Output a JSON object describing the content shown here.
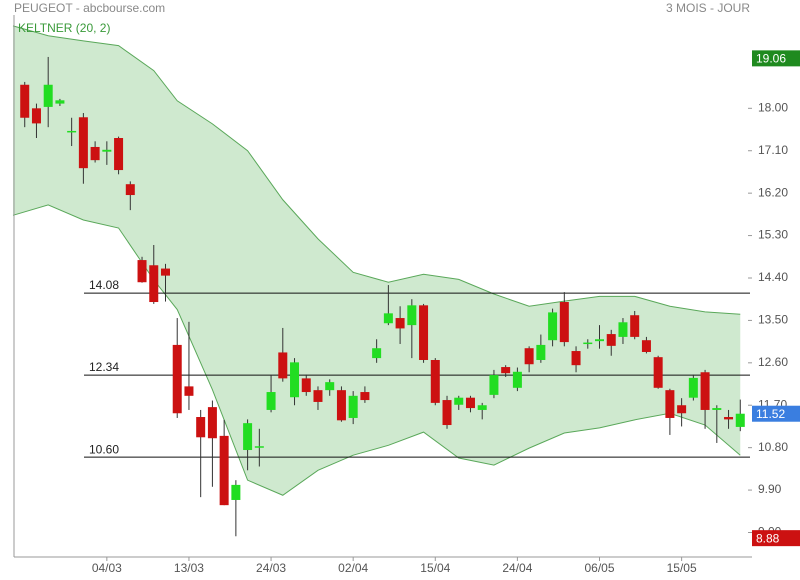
{
  "chart_data": {
    "type": "candlestick",
    "title": "PEUGEOT - abcbourse.com",
    "subtitle": "3 MOIS - JOUR",
    "indicator_label": "KELTNER (20, 2)",
    "categories": [
      null,
      null,
      null,
      null,
      null,
      null,
      null,
      "04/03",
      null,
      null,
      null,
      null,
      null,
      null,
      "13/03",
      null,
      null,
      null,
      null,
      null,
      null,
      "24/03",
      null,
      null,
      null,
      null,
      null,
      null,
      "02/04",
      null,
      null,
      null,
      null,
      null,
      null,
      "15/04",
      null,
      null,
      null,
      null,
      null,
      null,
      "24/04",
      null,
      null,
      null,
      null,
      null,
      null,
      "06/05",
      null,
      null,
      null,
      null,
      null,
      null,
      "15/05",
      null,
      null,
      null,
      null,
      null
    ],
    "open": [
      18.5,
      18.0,
      18.03,
      18.1,
      17.5,
      17.81,
      17.18,
      17.08,
      17.37,
      16.39,
      14.78,
      14.67,
      14.6,
      12.98,
      12.1,
      11.45,
      11.66,
      11.05,
      9.69,
      10.75,
      10.8,
      11.6,
      12.82,
      11.87,
      12.27,
      12.02,
      12.02,
      12.02,
      11.43,
      11.98,
      12.7,
      13.44,
      13.55,
      13.4,
      13.82,
      12.66,
      11.81,
      11.71,
      11.86,
      11.6,
      11.92,
      12.51,
      12.07,
      12.91,
      12.66,
      13.08,
      13.89,
      12.85,
      13.0,
      13.06,
      13.21,
      13.15,
      13.61,
      13.08,
      12.72,
      12.02,
      11.7,
      11.86,
      12.4,
      11.6,
      11.45,
      11.24
    ],
    "high": [
      18.56,
      18.1,
      19.09,
      18.2,
      17.8,
      17.9,
      17.3,
      17.3,
      17.4,
      16.45,
      14.85,
      15.1,
      14.7,
      13.55,
      13.47,
      11.6,
      11.8,
      11.39,
      10.11,
      11.4,
      11.2,
      12.34,
      13.34,
      12.7,
      12.35,
      12.1,
      12.25,
      12.1,
      12.0,
      12.1,
      13.1,
      14.25,
      13.8,
      13.95,
      13.85,
      12.7,
      11.9,
      11.9,
      11.9,
      11.75,
      12.45,
      12.55,
      12.5,
      12.95,
      13.2,
      13.75,
      14.1,
      12.95,
      13.1,
      13.4,
      13.3,
      13.55,
      13.7,
      13.15,
      12.75,
      12.05,
      11.85,
      12.35,
      12.45,
      11.7,
      11.6,
      11.82
    ],
    "low": [
      17.6,
      17.37,
      17.6,
      18.05,
      17.2,
      16.4,
      16.85,
      16.8,
      16.6,
      15.84,
      14.3,
      13.85,
      13.9,
      11.43,
      11.6,
      9.75,
      9.97,
      9.58,
      8.92,
      10.32,
      10.4,
      11.55,
      12.2,
      11.7,
      11.9,
      11.6,
      11.9,
      11.35,
      11.3,
      11.75,
      12.6,
      13.4,
      13.0,
      12.7,
      12.6,
      11.7,
      11.2,
      11.6,
      11.55,
      11.4,
      11.85,
      12.3,
      12.0,
      12.4,
      12.6,
      12.95,
      12.95,
      12.4,
      12.9,
      12.9,
      12.75,
      13.0,
      13.1,
      12.8,
      12.05,
      11.07,
      11.25,
      11.8,
      11.2,
      10.9,
      11.2,
      11.15
    ],
    "close": [
      17.8,
      17.68,
      18.5,
      18.17,
      17.52,
      16.73,
      16.9,
      17.12,
      16.69,
      16.16,
      14.31,
      13.89,
      14.45,
      11.53,
      11.9,
      11.02,
      11.0,
      9.58,
      10.01,
      11.32,
      10.83,
      11.98,
      12.27,
      12.61,
      11.98,
      11.77,
      12.19,
      11.38,
      11.9,
      11.81,
      12.91,
      13.65,
      13.33,
      13.82,
      12.66,
      11.75,
      11.28,
      11.86,
      11.64,
      11.7,
      12.34,
      12.38,
      12.41,
      12.57,
      12.98,
      13.67,
      13.04,
      12.55,
      13.03,
      13.1,
      12.96,
      13.46,
      13.15,
      12.83,
      12.07,
      11.43,
      11.53,
      12.28,
      11.6,
      11.64,
      11.4,
      11.52
    ],
    "up_color": "#22dd22",
    "down_color": "#cc1111",
    "keltner": {
      "x": [
        -1,
        2,
        5,
        8,
        11,
        13,
        16,
        19,
        22,
        25,
        28,
        31,
        34,
        37,
        40,
        43,
        46,
        49,
        52,
        55,
        58,
        61
      ],
      "upper": [
        19.75,
        19.54,
        19.43,
        19.33,
        18.8,
        18.16,
        17.67,
        17.1,
        16.06,
        15.23,
        14.52,
        14.31,
        14.48,
        14.37,
        14.06,
        13.8,
        13.91,
        14.01,
        14.01,
        13.8,
        13.68,
        13.63
      ],
      "lower": [
        15.73,
        15.95,
        15.63,
        15.46,
        14.36,
        13.73,
        12.03,
        10.11,
        9.79,
        10.32,
        10.64,
        10.85,
        11.13,
        10.58,
        10.43,
        10.79,
        11.11,
        11.22,
        11.39,
        11.53,
        11.28,
        10.64
      ],
      "color": "#5aa85a",
      "fill": "#cfe9cf"
    },
    "levels": [
      14.08,
      12.34,
      {
        "value": 10.6,
        "label": "10.60"
      }
    ],
    "markers": [
      {
        "value": 19.06,
        "color": "#1f8a1f"
      },
      {
        "value": 11.52,
        "color": "#3a7ee0"
      },
      {
        "value": 8.88,
        "color": "#cc1111"
      }
    ],
    "xlim": [
      -1,
      62
    ],
    "ylim": [
      8.48,
      19.98
    ],
    "yticks": [
      {
        "value": 9,
        "label": "9.00"
      },
      {
        "value": 9.9,
        "label": "9.90"
      },
      {
        "value": 10.8,
        "label": "10.80"
      },
      {
        "value": 11.7,
        "label": "11.70"
      },
      {
        "value": 12.6,
        "label": "12.60"
      },
      {
        "value": 13.5,
        "label": "13.50"
      },
      {
        "value": 14.4,
        "label": "14.40"
      },
      {
        "value": 15.3,
        "label": "15.30"
      },
      {
        "value": 16.2,
        "label": "16.20"
      },
      {
        "value": 17.1,
        "label": "17.10"
      },
      {
        "value": 18,
        "label": "18.00"
      }
    ]
  }
}
